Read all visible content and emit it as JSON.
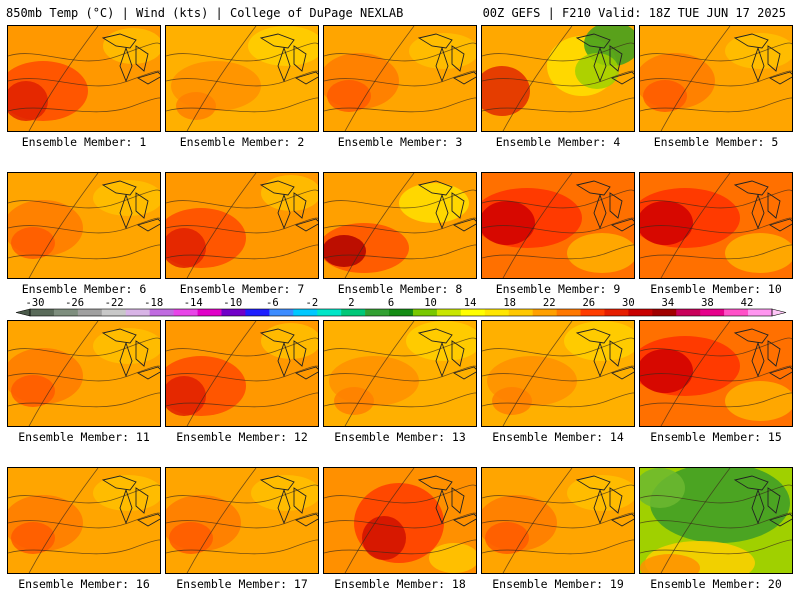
{
  "header": {
    "left": "850mb Temp (°C) | Wind (kts) | College of DuPage NEXLAB",
    "right": "00Z GEFS | F210 Valid: 18Z TUE JUN 17 2025"
  },
  "panel_label_prefix": "Ensemble Member: ",
  "members": [
    {
      "label": "Ensemble Member: 1",
      "palette": "hot_west"
    },
    {
      "label": "Ensemble Member: 2",
      "palette": "mild"
    },
    {
      "label": "Ensemble Member: 3",
      "palette": "warm"
    },
    {
      "label": "Ensemble Member: 4",
      "palette": "cool_ne"
    },
    {
      "label": "Ensemble Member: 5",
      "palette": "warm"
    },
    {
      "label": "Ensemble Member: 6",
      "palette": "warm"
    },
    {
      "label": "Ensemble Member: 7",
      "palette": "hot_west"
    },
    {
      "label": "Ensemble Member: 8",
      "palette": "hot_sw"
    },
    {
      "label": "Ensemble Member: 9",
      "palette": "very_hot"
    },
    {
      "label": "Ensemble Member: 10",
      "palette": "very_hot"
    },
    {
      "label": "Ensemble Member: 11",
      "palette": "warm"
    },
    {
      "label": "Ensemble Member: 12",
      "palette": "hot_west"
    },
    {
      "label": "Ensemble Member: 13",
      "palette": "mild"
    },
    {
      "label": "Ensemble Member: 14",
      "palette": "mild"
    },
    {
      "label": "Ensemble Member: 15",
      "palette": "very_hot"
    },
    {
      "label": "Ensemble Member: 16",
      "palette": "warm"
    },
    {
      "label": "Ensemble Member: 17",
      "palette": "warm"
    },
    {
      "label": "Ensemble Member: 18",
      "palette": "hot_center"
    },
    {
      "label": "Ensemble Member: 19",
      "palette": "warm"
    },
    {
      "label": "Ensemble Member: 20",
      "palette": "cool"
    }
  ],
  "colorbar": {
    "tick_labels": [
      "-30",
      "-26",
      "-22",
      "-18",
      "-14",
      "-10",
      "-6",
      "-2",
      "2",
      "6",
      "10",
      "14",
      "18",
      "22",
      "26",
      "30",
      "34",
      "38",
      "42"
    ],
    "colors": [
      "#5a6b5a",
      "#7e8e7e",
      "#a0a0a0",
      "#c8c8c8",
      "#d8b4e6",
      "#c06be0",
      "#e845e8",
      "#e000c8",
      "#7000c8",
      "#1e1eff",
      "#3c8cff",
      "#00c8ff",
      "#00e6c8",
      "#00c878",
      "#32a032",
      "#148c14",
      "#78c800",
      "#c8e600",
      "#ffff00",
      "#ffe600",
      "#ffc800",
      "#ffa000",
      "#ff7800",
      "#ff3c00",
      "#e61e00",
      "#c80000",
      "#a00000",
      "#c8005a",
      "#e6008c",
      "#ff50c8",
      "#ff96f0"
    ]
  }
}
